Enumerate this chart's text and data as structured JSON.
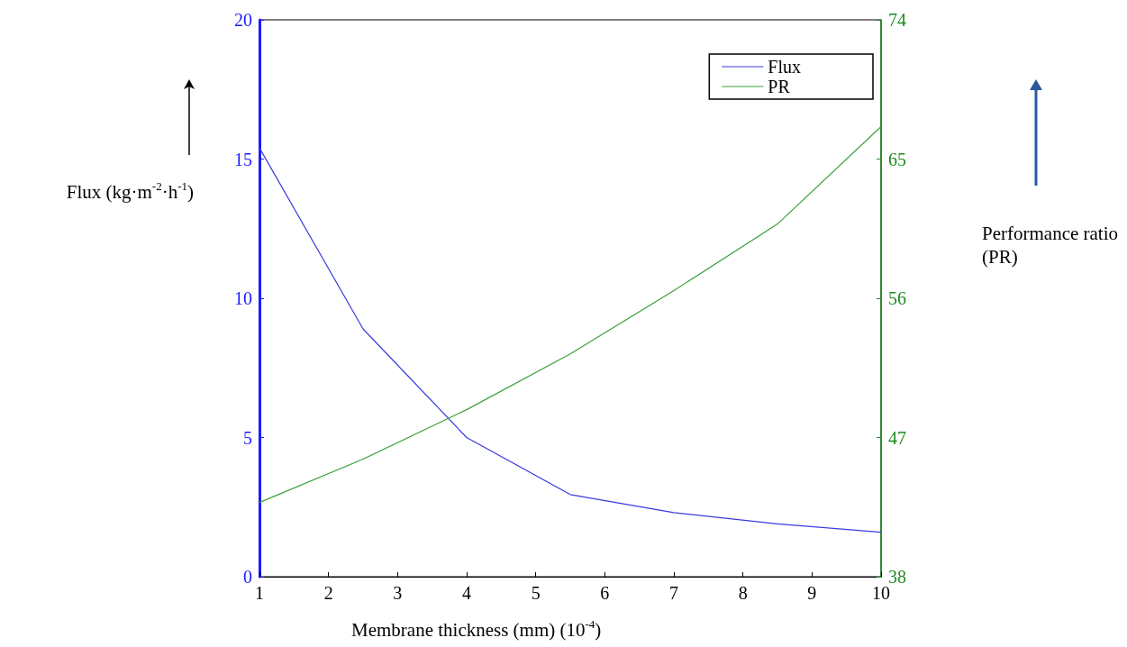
{
  "chart_data": {
    "type": "line",
    "xlabel": "Membrane thickness (mm) (10$^{-4}$)",
    "ylabel": "Flux (kg·m$^{-2}$·h$^{-1}$)",
    "y2label": "Performance ratio\n(PR)",
    "x": [
      1,
      2.5,
      4,
      5.5,
      7,
      8.5,
      10
    ],
    "series": [
      {
        "name": "Flux",
        "color": "#3a3ae0",
        "values": [
          15.4,
          8.9,
          5.0,
          2.95,
          2.3,
          1.9,
          1.6
        ]
      },
      {
        "name": "PR",
        "color": "#3aa03a",
        "axis": "y2",
        "values": [
          42.8,
          45.6,
          48.8,
          52.4,
          56.5,
          60.8,
          67.1
        ]
      }
    ],
    "xlim": [
      1,
      10
    ],
    "xticks": [
      1,
      2,
      3,
      4,
      5,
      6,
      7,
      8,
      9,
      10
    ],
    "ylim": [
      0,
      20
    ],
    "yticks": [
      0,
      5,
      10,
      15,
      20
    ],
    "y2lim": [
      38,
      74
    ],
    "y2ticks": [
      38,
      47,
      56,
      65,
      74
    ],
    "grid": false,
    "legend": "top right",
    "marker": "none",
    "line_style": "solid"
  }
}
